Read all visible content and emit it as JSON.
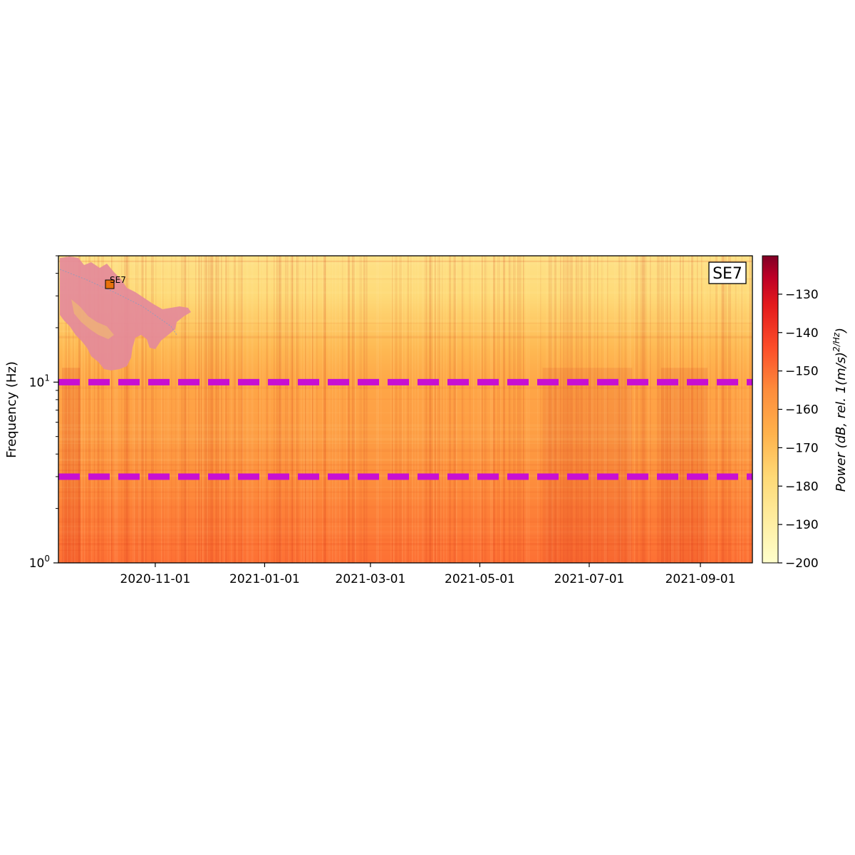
{
  "chart_data": {
    "type": "heatmap",
    "title": "",
    "xlabel": "",
    "ylabel": "Frequency (Hz)",
    "y_scale": "log",
    "ylim": [
      1,
      50
    ],
    "xlim": [
      "2020-09-08",
      "2021-09-30"
    ],
    "x_ticks": [
      "2020-11-01",
      "2021-01-01",
      "2021-03-01",
      "2021-05-01",
      "2021-07-01",
      "2021-09-01"
    ],
    "y_ticks": [
      {
        "value": 1,
        "base": "10",
        "exp": "0"
      },
      {
        "value": 10,
        "base": "10",
        "exp": "1"
      }
    ],
    "colorbar": {
      "label": "Power (dB, rel. 1(m/s)²/Hz)",
      "label_main": "Power (dB, rel. 1(m/s)",
      "label_sup": "2/Hz",
      "label_end": ")",
      "range": [
        -200,
        -120
      ],
      "ticks": [
        -130,
        -140,
        -150,
        -160,
        -170,
        -180,
        -190,
        -200
      ],
      "colormap": "YlOrRd"
    },
    "reference_lines": [
      {
        "frequency": 10,
        "color": "#c80fd2",
        "style": "dashed"
      },
      {
        "frequency": 3,
        "color": "#c80fd2",
        "style": "dashed"
      }
    ],
    "power_profile": [
      {
        "frequency": 1,
        "power": -150
      },
      {
        "frequency": 1.5,
        "power": -152
      },
      {
        "frequency": 2,
        "power": -153
      },
      {
        "frequency": 3,
        "power": -156
      },
      {
        "frequency": 5,
        "power": -160
      },
      {
        "frequency": 8,
        "power": -162
      },
      {
        "frequency": 10,
        "power": -163
      },
      {
        "frequency": 15,
        "power": -168
      },
      {
        "frequency": 20,
        "power": -172
      },
      {
        "frequency": 30,
        "power": -178
      },
      {
        "frequency": 50,
        "power": -182
      }
    ],
    "station_badge": "SE7",
    "inset_map": {
      "station_label": "SE7",
      "marker_color": "#e8720c",
      "land_color": "#e48a9a"
    }
  }
}
